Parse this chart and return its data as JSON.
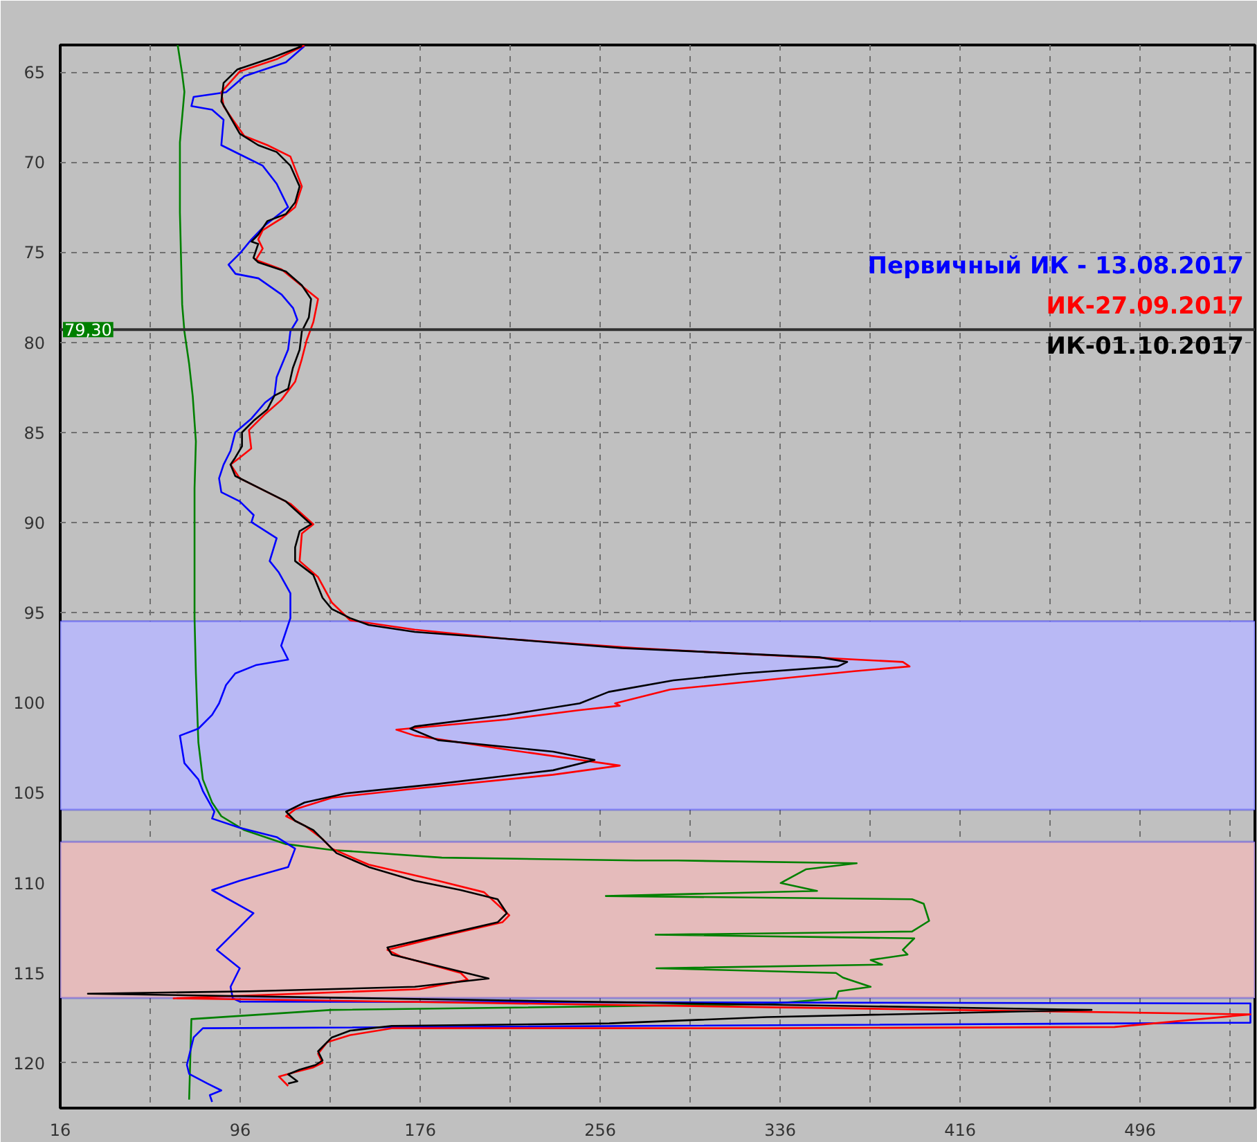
{
  "chart_data": {
    "type": "line",
    "xlim": [
      16,
      547
    ],
    "ylim": [
      122.5,
      63.5
    ],
    "xticks": [
      16,
      {
        "value": 56,
        "label": null
      },
      96,
      {
        "value": 136,
        "label": null
      },
      176,
      {
        "value": 216,
        "label": null
      },
      256,
      {
        "value": 296,
        "label": null
      },
      336,
      {
        "value": 376,
        "label": null
      },
      416,
      {
        "value": 456,
        "label": null
      },
      496,
      {
        "value": 536,
        "label": null
      }
    ],
    "yticks": [
      65,
      70,
      75,
      80,
      85,
      90,
      95,
      100,
      105,
      110,
      115,
      120
    ],
    "grid": true,
    "legend": "right",
    "line_style": "solid",
    "marker": "none",
    "ref_lines": [
      {
        "axis": "y",
        "value": 79.3,
        "label": "79,30",
        "color": "#303030"
      }
    ],
    "bands": [
      {
        "axis": "y",
        "from": 95.48,
        "to": 105.94,
        "color": "#b9b9f5"
      },
      {
        "axis": "y",
        "from": 107.72,
        "to": 116.39,
        "color": "#e5bbbb"
      }
    ],
    "series": [
      {
        "color": "#008000",
        "x": [
          68.2,
          70.2,
          71.2,
          69.2,
          69.2,
          70.2,
          71.2,
          73.3,
          74.9,
          76.3,
          75.7,
          75.7,
          75.7,
          76.3,
          77.4,
          79.4,
          83.5,
          87.6,
          97.8,
          116,
          136.5,
          185.6,
          271.8,
          290.2,
          370,
          347.4,
          336.2,
          352.4,
          258.5,
          394.6,
          399.8,
          402.2,
          394.6,
          280.6,
          395.6,
          390.5,
          392.6,
          376.2,
          381.3,
          281,
          360.8,
          363.9,
          376.2,
          361.9,
          360.8,
          328.9,
          136.7,
          74.3,
          73.3
        ],
        "values": [
          63.5,
          65.1,
          66.1,
          68.9,
          72.8,
          77.9,
          79.4,
          81.2,
          83,
          85.5,
          88.1,
          91.9,
          95.31,
          98.38,
          102.2,
          104.26,
          105.54,
          106.3,
          107.07,
          107.84,
          108.17,
          108.6,
          108.76,
          108.76,
          108.91,
          109.25,
          110.01,
          110.45,
          110.73,
          110.91,
          111.16,
          112.11,
          112.7,
          112.88,
          113.08,
          113.72,
          113.98,
          114.28,
          114.54,
          114.74,
          115,
          115.26,
          115.77,
          116.02,
          116.41,
          116.74,
          117.05,
          117.56,
          122.03
        ]
      },
      {
        "name": "Первичный ИК - 13.08.2017",
        "color": "#0000ff",
        "x": [
          124.5,
          116.3,
          97.9,
          89.7,
          75.3,
          74.3,
          83.5,
          88.6,
          87.6,
          95.8,
          106,
          112.2,
          117.3,
          107.1,
          101,
          96,
          90.8,
          93.9,
          104.1,
          114.4,
          119.5,
          121.4,
          118.3,
          117.3,
          112.2,
          111.2,
          107.1,
          101,
          93.8,
          91.7,
          88.6,
          86.6,
          87.6,
          95.8,
          102,
          101,
          112.2,
          109.1,
          113.2,
          118.3,
          118.3,
          114.2,
          117.3,
          102.9,
          93.8,
          89.7,
          86.6,
          83.5,
          77.4,
          69.2,
          71.2,
          77.4,
          79.4,
          84.5,
          83.5,
          95.8,
          112.2,
          120.4,
          117.3,
          95.8,
          83.5,
          101.9,
          93.8,
          85.6,
          95.8,
          91.7,
          92.7,
          95.8,
          545,
          545,
          79.4,
          75.3,
          72.3,
          73.3,
          81.5,
          87.6,
          82.5,
          83.5
        ],
        "values": [
          63.57,
          64.46,
          65.23,
          66.12,
          66.38,
          66.89,
          67.09,
          67.65,
          69.06,
          69.57,
          70.2,
          71.2,
          72.5,
          73.5,
          74.29,
          75.05,
          75.69,
          76.2,
          76.45,
          77.35,
          78.1,
          78.75,
          79.39,
          80.4,
          81.94,
          82.96,
          83.34,
          84.23,
          85,
          86.02,
          86.79,
          87.55,
          88.32,
          88.83,
          89.59,
          89.98,
          90.87,
          92.14,
          92.78,
          93.93,
          95.31,
          96.84,
          97.61,
          97.92,
          98.38,
          99.02,
          100.04,
          100.68,
          101.44,
          101.83,
          103.36,
          104.26,
          104.9,
          106.05,
          106.43,
          106.94,
          107.46,
          108.1,
          109.12,
          109.88,
          110.4,
          111.68,
          112.7,
          113.72,
          114.74,
          115.77,
          116.41,
          116.59,
          116.69,
          117.76,
          118.07,
          118.58,
          120.1,
          120.6,
          121.14,
          121.52,
          121.78,
          122.16
        ]
      },
      {
        "name": "ИК-27.09.2017",
        "color": "#ff0000",
        "x": [
          124.5,
          112.2,
          95.8,
          87.6,
          88.6,
          92.7,
          97.8,
          108.1,
          118.3,
          123.4,
          120.4,
          114.2,
          106,
          104,
          106,
          102.9,
          114.2,
          125.5,
          130.6,
          128.5,
          125.5,
          123.4,
          120.4,
          114.2,
          107.1,
          99.9,
          100.9,
          95.8,
          91.7,
          95.8,
          108.1,
          118.3,
          128.5,
          123.4,
          122.4,
          130.6,
          136.7,
          144.9,
          173.6,
          214.5,
          271.8,
          308.6,
          349.4,
          390.5,
          393.5,
          369,
          328.1,
          287.1,
          262.6,
          264.7,
          246.2,
          214.5,
          165.4,
          173.6,
          214.5,
          264.7,
          235,
          173.6,
          136.7,
          120.4,
          116.4,
          124.6,
          132.7,
          136.7,
          153.1,
          183.9,
          204.4,
          215.6,
          212.5,
          186,
          161.4,
          167.6,
          194,
          197.1,
          175.6,
          66.4,
          545,
          484.6,
          330,
          163.3,
          144.9,
          134.7,
          130.6,
          132.6,
          128.5,
          120.4,
          113.2,
          117.3
        ],
        "values": [
          63.52,
          64.29,
          64.97,
          66.12,
          66.89,
          67.65,
          68.55,
          69.06,
          69.69,
          71.35,
          72.5,
          73.14,
          73.78,
          74.29,
          74.8,
          75.43,
          75.94,
          77.09,
          77.6,
          78.88,
          79.9,
          80.92,
          82.19,
          83.21,
          83.98,
          84.87,
          85.89,
          86.4,
          86.79,
          87.55,
          88.32,
          88.96,
          90.1,
          90.61,
          92.14,
          93.03,
          94.44,
          95.43,
          95.95,
          96.46,
          96.97,
          97.22,
          97.48,
          97.74,
          97.99,
          98.25,
          98.76,
          99.27,
          100.04,
          100.17,
          100.42,
          100.93,
          101.5,
          101.83,
          102.6,
          103.49,
          104,
          104.77,
          105.28,
          105.92,
          106.3,
          106.82,
          107.58,
          108.1,
          108.99,
          109.88,
          110.52,
          111.8,
          112.19,
          112.95,
          113.72,
          114.1,
          115,
          115.38,
          115.9,
          116.41,
          117.3,
          118.0,
          118.07,
          118.07,
          118.45,
          118.84,
          119.48,
          119.99,
          120.24,
          120.5,
          120.75,
          121.27
        ]
      },
      {
        "name": "ИК-01.10.2017",
        "color": "#000000",
        "x": [
          123.4,
          110.1,
          94.8,
          88.6,
          87.6,
          91.7,
          95.8,
          104,
          112.2,
          118.3,
          122.4,
          120.4,
          116.3,
          108.1,
          104,
          101,
          104,
          101.9,
          104,
          116.3,
          123.4,
          127.5,
          126.5,
          123.4,
          122.4,
          119.4,
          117.3,
          111.2,
          108.1,
          101.9,
          96.8,
          96.8,
          93.8,
          91.7,
          93.8,
          104,
          116.3,
          127.5,
          122.4,
          120.4,
          120.4,
          128.5,
          132.6,
          136.7,
          144.9,
          153.1,
          173.6,
          214.5,
          265.7,
          308.6,
          353.5,
          365.8,
          361.7,
          319.2,
          288.5,
          259.8,
          246.9,
          214.5,
          173.6,
          171.6,
          183.9,
          235.1,
          253.5,
          235.1,
          183.9,
          143,
          124.6,
          116.4,
          120.4,
          128.5,
          134.7,
          138.8,
          153.1,
          173.6,
          194,
          210.4,
          214.5,
          210.4,
          183.9,
          161.4,
          163.4,
          183.9,
          206.4,
          173.6,
          100,
          28.3,
          474.4,
          330,
          260,
          163.3,
          144.9,
          136.7,
          130.6,
          132.6,
          129.5,
          122.4,
          117.3,
          121.4,
          117.3
        ],
        "values": [
          63.57,
          64.21,
          64.85,
          65.61,
          66.63,
          67.53,
          68.42,
          69.06,
          69.44,
          70.2,
          71.35,
          72.24,
          72.88,
          73.27,
          74.03,
          74.41,
          74.54,
          75.31,
          75.56,
          76.07,
          76.84,
          77.6,
          78.62,
          79.39,
          80.41,
          81.43,
          82.58,
          82.96,
          83.72,
          84.36,
          85,
          85.77,
          86.4,
          86.79,
          87.42,
          88.06,
          88.83,
          90.1,
          90.48,
          91.38,
          92.14,
          92.91,
          94.18,
          94.8,
          95.31,
          95.69,
          96.07,
          96.46,
          96.97,
          97.22,
          97.48,
          97.74,
          97.99,
          98.38,
          98.76,
          99.4,
          100.04,
          100.68,
          101.32,
          101.44,
          102.08,
          102.72,
          103.18,
          103.75,
          104.51,
          105.03,
          105.54,
          106.05,
          106.56,
          107.07,
          107.84,
          108.35,
          109.12,
          109.88,
          110.4,
          110.91,
          111.68,
          112.19,
          112.95,
          113.59,
          113.98,
          114.62,
          115.31,
          115.77,
          116.02,
          116.15,
          117.05,
          117.45,
          117.8,
          117.94,
          118.2,
          118.58,
          119.35,
          119.86,
          120.11,
          120.37,
          120.63,
          121.01,
          121.14
        ]
      }
    ]
  }
}
